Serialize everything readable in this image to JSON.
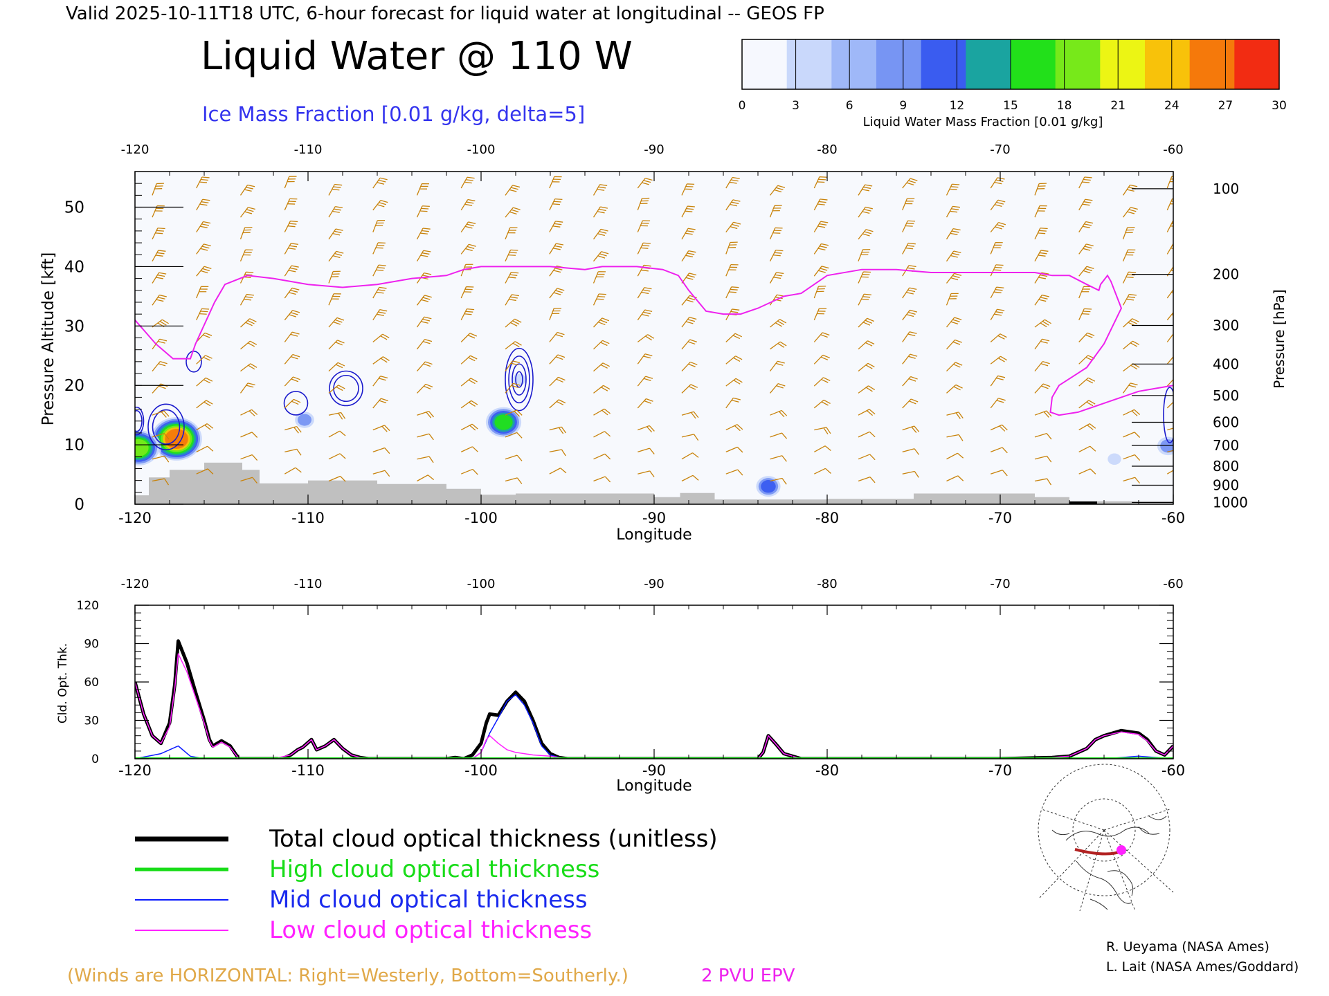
{
  "header": {
    "valid_line": "Valid 2025-10-11T18 UTC, 6-hour forecast for liquid water at longitudinal -- GEOS FP",
    "title": "Liquid Water @ 110 W",
    "subtitle": "Ice Mass Fraction [0.01 g/kg, delta=5]"
  },
  "colorbar": {
    "label": "Liquid Water Mass Fraction [0.01 g/kg]",
    "ticks": [
      "0",
      "3",
      "6",
      "9",
      "12",
      "15",
      "18",
      "21",
      "24",
      "27",
      "30"
    ],
    "colors": [
      "#f6f8fe",
      "#c9d8fb",
      "#9fb8f8",
      "#7795f3",
      "#3a5cf0",
      "#1aa4a0",
      "#22e01a",
      "#77e91a",
      "#ecf514",
      "#f8c20a",
      "#f5790b",
      "#f22c12"
    ]
  },
  "chart_data": [
    {
      "type": "heatmap",
      "xlabel": "Longitude",
      "ylabel": "Pressure Altitude [kft]",
      "y2label": "Pressure [hPa]",
      "xlim": [
        -120,
        -60
      ],
      "ylim": [
        0,
        56
      ],
      "x_ticks": [
        "-120",
        "-110",
        "-100",
        "-90",
        "-80",
        "-70",
        "-60"
      ],
      "y_ticks": [
        "0",
        "10",
        "20",
        "30",
        "40",
        "50"
      ],
      "pressure_ticks": [
        {
          "label": "100",
          "kft": 53.1
        },
        {
          "label": "200",
          "kft": 38.7
        },
        {
          "label": "300",
          "kft": 30.1
        },
        {
          "label": "400",
          "kft": 23.6
        },
        {
          "label": "500",
          "kft": 18.3
        },
        {
          "label": "600",
          "kft": 13.8
        },
        {
          "label": "700",
          "kft": 9.9
        },
        {
          "label": "800",
          "kft": 6.4
        },
        {
          "label": "900",
          "kft": 3.2
        },
        {
          "label": "1000",
          "kft": 0.3
        }
      ],
      "liquid_water_blobs": [
        {
          "lon": -117.6,
          "kft": 11.0,
          "value": 27
        },
        {
          "lon": -119.8,
          "kft": 9.5,
          "value": 21
        },
        {
          "lon": -98.7,
          "kft": 13.8,
          "value": 17
        },
        {
          "lon": -110.2,
          "kft": 14.2,
          "value": 7
        },
        {
          "lon": -83.4,
          "kft": 3.0,
          "value": 10
        },
        {
          "lon": -60.3,
          "kft": 9.8,
          "value": 9
        },
        {
          "lon": -63.4,
          "kft": 7.6,
          "value": 4
        },
        {
          "lon": -97.8,
          "kft": 21.0,
          "value": 4
        }
      ],
      "epv_2pvu_line": {
        "lon": [
          -120,
          -118.8,
          -117.8,
          -116.8,
          -116.5,
          -115.4,
          -114.8,
          -113.5,
          -112,
          -110,
          -108,
          -106,
          -104,
          -102,
          -101,
          -100,
          -98,
          -96,
          -94,
          -93,
          -91,
          -89.5,
          -88.6,
          -88,
          -87,
          -86,
          -85,
          -84,
          -82.5,
          -81.5,
          -80,
          -78,
          -76,
          -74,
          -72,
          -70,
          -68,
          -67,
          -66,
          -65,
          -64.3,
          -64.2,
          -63.8,
          -63.6,
          -63,
          -64,
          -65,
          -65.8,
          -66.6,
          -67,
          -67.1,
          -66.6,
          -65.5,
          -64.5,
          -63.5,
          -62,
          -61,
          -60
        ],
        "kft": [
          31,
          27,
          24.5,
          24.5,
          27,
          34,
          37,
          38.5,
          38,
          37,
          36.5,
          37,
          38,
          38.5,
          39.5,
          40,
          40,
          40,
          39.5,
          40,
          40,
          39.5,
          38.5,
          36,
          32.5,
          32,
          32,
          33,
          35,
          35.5,
          38.5,
          39.5,
          39.5,
          39,
          39,
          39,
          39,
          38.5,
          38.5,
          37,
          36,
          37,
          38.5,
          37.5,
          33,
          27,
          23,
          21.5,
          20,
          18,
          15.5,
          15,
          15.5,
          16.5,
          17.5,
          19,
          19.5,
          20
        ]
      },
      "wind_barbs_note": "Winds are HORIZONTAL: Right=Westerly, Bottom=Southerly."
    },
    {
      "type": "line",
      "xlabel": "Longitude",
      "ylabel": "Cld. Opt. Thk.",
      "xlim": [
        -120,
        -60
      ],
      "ylim": [
        0,
        120
      ],
      "x_ticks": [
        "-120",
        "-110",
        "-100",
        "-90",
        "-80",
        "-70",
        "-60"
      ],
      "y_ticks": [
        "0",
        "30",
        "60",
        "90",
        "120"
      ],
      "series": [
        {
          "name": "Total cloud optical thickness (unitless)",
          "color": "#000000",
          "x": [
            -120,
            -119.5,
            -119,
            -118.5,
            -118,
            -117.7,
            -117.5,
            -117,
            -116.5,
            -116,
            -115.7,
            -115.5,
            -115,
            -114.5,
            -114,
            -112,
            -111.5,
            -111,
            -110.6,
            -110.3,
            -109.8,
            -109.5,
            -109,
            -108.5,
            -108,
            -107.5,
            -107,
            -106.5,
            -106,
            -104,
            -102,
            -101.5,
            -101,
            -100.5,
            -100,
            -99.7,
            -99.5,
            -99,
            -98.5,
            -98,
            -97.5,
            -97,
            -96.5,
            -96,
            -95.5,
            -95,
            -90,
            -85,
            -84,
            -83.7,
            -83.4,
            -83,
            -82.5,
            -82,
            -81.5,
            -80,
            -75,
            -70,
            -67,
            -66,
            -65,
            -64.5,
            -64,
            -63,
            -62,
            -61.5,
            -61,
            -60.5,
            -60
          ],
          "values": [
            60,
            35,
            18,
            12,
            28,
            58,
            92,
            75,
            52,
            30,
            15,
            10,
            14,
            10,
            0,
            0,
            0,
            3,
            7,
            9,
            15,
            7,
            10,
            15,
            8,
            3,
            1,
            0,
            0,
            0,
            0,
            1,
            0,
            3,
            12,
            28,
            35,
            34,
            45,
            52,
            45,
            30,
            12,
            4,
            1,
            0,
            0,
            0,
            0,
            5,
            18,
            12,
            4,
            2,
            0,
            0,
            0,
            0,
            1,
            2,
            8,
            15,
            18,
            22,
            20,
            15,
            6,
            3,
            10
          ]
        },
        {
          "name": "High cloud optical thickness",
          "color": "#18dc18",
          "x": [
            -120,
            -60
          ],
          "values": [
            0,
            0
          ]
        },
        {
          "name": "Mid cloud optical thickness",
          "color": "#0a1aff",
          "x": [
            -120,
            -118.5,
            -117.5,
            -116.8,
            -116,
            -115,
            -114,
            -100.5,
            -100,
            -99.5,
            -99,
            -98.5,
            -98,
            -97.5,
            -97,
            -96.5,
            -96,
            -95.5,
            -95,
            -64,
            -63,
            -62,
            -61,
            -60
          ],
          "values": [
            0,
            4,
            10,
            2,
            0,
            0,
            0,
            0,
            5,
            20,
            32,
            45,
            50,
            42,
            28,
            10,
            3,
            1,
            0,
            0,
            1,
            2,
            1,
            0
          ]
        },
        {
          "name": "Low cloud optical thickness",
          "color": "#ff22ff",
          "x": [
            -120,
            -119.5,
            -119,
            -118.5,
            -118,
            -117.7,
            -117.5,
            -117,
            -116.5,
            -116,
            -115.7,
            -115.5,
            -115,
            -114.5,
            -114,
            -112,
            -111,
            -110.6,
            -110.3,
            -109.8,
            -109.5,
            -109,
            -108.5,
            -108,
            -107.5,
            -107,
            -106,
            -100.5,
            -100,
            -99.7,
            -99.5,
            -99,
            -98.5,
            -98,
            -97,
            -96,
            -95,
            -85,
            -84,
            -83.7,
            -83.4,
            -83,
            -82.5,
            -82,
            -81.5,
            -80,
            -70,
            -67,
            -66,
            -65,
            -64.5,
            -64,
            -63,
            -62,
            -61.5,
            -61,
            -60.5,
            -60
          ],
          "values": [
            60,
            35,
            18,
            12,
            25,
            55,
            82,
            68,
            48,
            28,
            14,
            9,
            13,
            9,
            0,
            0,
            3,
            7,
            9,
            15,
            7,
            10,
            15,
            8,
            3,
            1,
            0,
            0,
            5,
            15,
            18,
            12,
            7,
            5,
            3,
            2,
            0,
            0,
            0,
            5,
            18,
            12,
            4,
            2,
            0,
            0,
            0,
            1,
            2,
            8,
            15,
            18,
            21,
            19,
            14,
            6,
            3,
            10
          ]
        }
      ]
    }
  ],
  "legend": {
    "items": [
      {
        "label": "Total cloud optical thickness (unitless)",
        "color": "#000000",
        "text_color": "#000000"
      },
      {
        "label": "High cloud optical thickness",
        "color": "#18dc18",
        "text_color": "#18dc18"
      },
      {
        "label": "Mid cloud optical thickness",
        "color": "#0a1aff",
        "text_color": "#1a2aee"
      },
      {
        "label": "Low cloud optical thickness",
        "color": "#ff22ff",
        "text_color": "#ff22ff"
      }
    ]
  },
  "footer": {
    "winds_note": "(Winds are HORIZONTAL: Right=Westerly, Bottom=Southerly.)",
    "epv_label": "2 PVU EPV",
    "credit1": "R. Ueyama (NASA Ames)",
    "credit2": "L. Lait (NASA Ames/Goddard)"
  },
  "colors": {
    "wind": "#c8820a",
    "ice_contour": "#1a1acc",
    "epv": "#ee22ee",
    "terrain": "#c0c0c0",
    "axis_text": "#000000"
  }
}
